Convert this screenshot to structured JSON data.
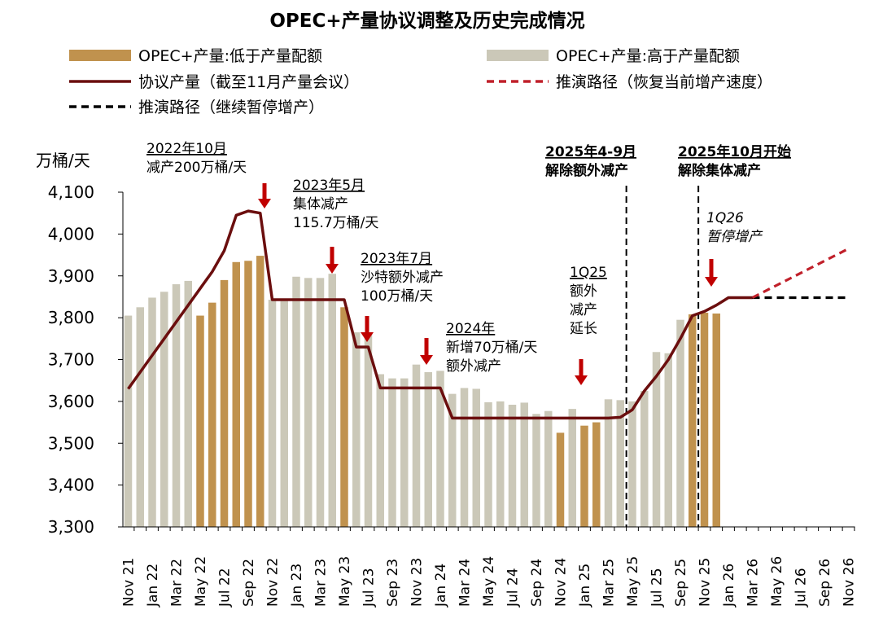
{
  "chart_data": {
    "type": "bar",
    "title": "OPEC+产量协议调整及历史完成情况",
    "ylabel": "万桶/天",
    "ylim": [
      3300,
      4100
    ],
    "yticks": [
      3300,
      3400,
      3500,
      3600,
      3700,
      3800,
      3900,
      4000,
      4100
    ],
    "ytick_labels": [
      "3,300",
      "3,400",
      "3,500",
      "3,600",
      "3,700",
      "3,800",
      "3,900",
      "4,000",
      "4,100"
    ],
    "months": [
      "Nov 21",
      "Dec 21",
      "Jan 22",
      "Feb 22",
      "Mar 22",
      "Apr 22",
      "May 22",
      "Jun 22",
      "Jul 22",
      "Aug 22",
      "Sep 22",
      "Oct 22",
      "Nov 22",
      "Dec 22",
      "Jan 23",
      "Feb 23",
      "Mar 23",
      "Apr 23",
      "May 23",
      "Jun 23",
      "Jul 23",
      "Aug 23",
      "Sep 23",
      "Oct 23",
      "Nov 23",
      "Dec 23",
      "Jan 24",
      "Feb 24",
      "Mar 24",
      "Apr 24",
      "May 24",
      "Jun 24",
      "Jul 24",
      "Aug 24",
      "Sep 24",
      "Oct 24",
      "Nov 24",
      "Dec 24",
      "Jan 25",
      "Feb 25",
      "Mar 25",
      "Apr 25",
      "May 25",
      "Jun 25",
      "Jul 25",
      "Aug 25",
      "Sep 25",
      "Oct 25",
      "Nov 25",
      "Dec 25",
      "Jan 26",
      "Feb 26",
      "Mar 26",
      "Apr 26",
      "May 26",
      "Jun 26",
      "Jul 26",
      "Aug 26",
      "Sep 26",
      "Oct 26",
      "Nov 26"
    ],
    "xtick_labels": [
      "Nov 21",
      "Jan 22",
      "Mar 22",
      "May 22",
      "Jul 22",
      "Sep 22",
      "Nov 22",
      "Jan 23",
      "Mar 23",
      "May 23",
      "Jul 23",
      "Sep 23",
      "Nov 23",
      "Jan 24",
      "Mar 24",
      "May 24",
      "Jul 24",
      "Sep 24",
      "Nov 24",
      "Jan 25",
      "Mar 25",
      "May 25",
      "Jul 25",
      "Sep 25",
      "Nov 25",
      "Jan 26",
      "Mar 26",
      "May 26",
      "Jul 26",
      "Sep 26",
      "Nov 26"
    ],
    "bars": [
      {
        "v": 3805,
        "c": "above"
      },
      {
        "v": 3825,
        "c": "above"
      },
      {
        "v": 3848,
        "c": "above"
      },
      {
        "v": 3862,
        "c": "above"
      },
      {
        "v": 3880,
        "c": "above"
      },
      {
        "v": 3888,
        "c": "above"
      },
      {
        "v": 3805,
        "c": "below"
      },
      {
        "v": 3836,
        "c": "below"
      },
      {
        "v": 3890,
        "c": "below"
      },
      {
        "v": 3933,
        "c": "below"
      },
      {
        "v": 3936,
        "c": "below"
      },
      {
        "v": 3948,
        "c": "below"
      },
      {
        "v": 3843,
        "c": "above"
      },
      {
        "v": 3843,
        "c": "above"
      },
      {
        "v": 3898,
        "c": "above"
      },
      {
        "v": 3895,
        "c": "above"
      },
      {
        "v": 3895,
        "c": "above"
      },
      {
        "v": 3905,
        "c": "above"
      },
      {
        "v": 3825,
        "c": "below"
      },
      {
        "v": 3765,
        "c": "above"
      },
      {
        "v": 3763,
        "c": "above"
      },
      {
        "v": 3665,
        "c": "above"
      },
      {
        "v": 3655,
        "c": "above"
      },
      {
        "v": 3655,
        "c": "above"
      },
      {
        "v": 3688,
        "c": "above"
      },
      {
        "v": 3670,
        "c": "above"
      },
      {
        "v": 3673,
        "c": "above"
      },
      {
        "v": 3618,
        "c": "above"
      },
      {
        "v": 3632,
        "c": "above"
      },
      {
        "v": 3630,
        "c": "above"
      },
      {
        "v": 3598,
        "c": "above"
      },
      {
        "v": 3600,
        "c": "above"
      },
      {
        "v": 3592,
        "c": "above"
      },
      {
        "v": 3597,
        "c": "above"
      },
      {
        "v": 3570,
        "c": "above"
      },
      {
        "v": 3577,
        "c": "above"
      },
      {
        "v": 3525,
        "c": "below"
      },
      {
        "v": 3582,
        "c": "above"
      },
      {
        "v": 3542,
        "c": "below"
      },
      {
        "v": 3550,
        "c": "below"
      },
      {
        "v": 3605,
        "c": "above"
      },
      {
        "v": 3603,
        "c": "above"
      },
      {
        "v": 3600,
        "c": "above"
      },
      {
        "v": 3625,
        "c": "above"
      },
      {
        "v": 3718,
        "c": "above"
      },
      {
        "v": 3715,
        "c": "above"
      },
      {
        "v": 3795,
        "c": "above"
      },
      {
        "v": 3808,
        "c": "below"
      },
      {
        "v": 3812,
        "c": "below"
      },
      {
        "v": 3810,
        "c": "below"
      }
    ],
    "series": [
      {
        "name": "OPEC+产量:低于产量配额",
        "kind": "bar",
        "color": "#C0924E"
      },
      {
        "name": "OPEC+产量:高于产量配额",
        "kind": "bar",
        "color": "#CBC8B8"
      },
      {
        "name": "协议产量（截至11月产量会议）",
        "kind": "line",
        "color": "#6B0E0E",
        "points": [
          [
            0,
            3630
          ],
          [
            1,
            3670
          ],
          [
            2,
            3710
          ],
          [
            3,
            3750
          ],
          [
            4,
            3790
          ],
          [
            5,
            3830
          ],
          [
            6,
            3870
          ],
          [
            7,
            3910
          ],
          [
            8,
            3960
          ],
          [
            9,
            4045
          ],
          [
            10,
            4055
          ],
          [
            11,
            4050
          ],
          [
            12,
            3843
          ],
          [
            13,
            3843
          ],
          [
            14,
            3843
          ],
          [
            15,
            3843
          ],
          [
            16,
            3843
          ],
          [
            17,
            3843
          ],
          [
            18,
            3843
          ],
          [
            19,
            3730
          ],
          [
            20,
            3730
          ],
          [
            21,
            3632
          ],
          [
            22,
            3632
          ],
          [
            23,
            3632
          ],
          [
            24,
            3632
          ],
          [
            25,
            3632
          ],
          [
            26,
            3632
          ],
          [
            27,
            3560
          ],
          [
            28,
            3560
          ],
          [
            29,
            3560
          ],
          [
            30,
            3560
          ],
          [
            31,
            3560
          ],
          [
            32,
            3560
          ],
          [
            33,
            3560
          ],
          [
            34,
            3560
          ],
          [
            35,
            3560
          ],
          [
            36,
            3560
          ],
          [
            37,
            3560
          ],
          [
            38,
            3560
          ],
          [
            39,
            3560
          ],
          [
            40,
            3560
          ],
          [
            41,
            3562
          ],
          [
            42,
            3580
          ],
          [
            43,
            3625
          ],
          [
            44,
            3660
          ],
          [
            45,
            3700
          ],
          [
            46,
            3750
          ],
          [
            47,
            3805
          ],
          [
            48,
            3815
          ],
          [
            49,
            3830
          ],
          [
            50,
            3848
          ],
          [
            51,
            3848
          ],
          [
            52,
            3848
          ]
        ]
      },
      {
        "name": "推演路径（恢复当前增产速度）",
        "kind": "line",
        "color": "#C0202A",
        "points": [
          [
            52,
            3848
          ],
          [
            60,
            3965
          ]
        ]
      },
      {
        "name": "推演路径（继续暂停增产）",
        "kind": "line",
        "color": "#000000",
        "points": [
          [
            52,
            3848
          ],
          [
            60,
            3848
          ]
        ]
      }
    ],
    "vlines": [
      {
        "x": 41.5
      },
      {
        "x": 47.5
      }
    ],
    "annotations": [
      {
        "lines": [
          "2022年10月",
          "减产200万桶/天"
        ],
        "underline_first": true,
        "arrow_index": 11
      },
      {
        "lines": [
          "2023年5月",
          "集体减产",
          "115.7万桶/天"
        ],
        "underline_first": true,
        "arrow_index": 18
      },
      {
        "lines": [
          "2023年7月",
          "沙特额外减产",
          "100万桶/天"
        ],
        "underline_first": true,
        "arrow_index": 20
      },
      {
        "lines": [
          "2024年",
          "新增70万桶/天",
          "额外减产"
        ],
        "underline_first": true,
        "arrow_index": 27
      },
      {
        "lines": [
          "1Q25",
          "额外",
          "减产",
          "延长"
        ],
        "underline_first": true,
        "arrow_index": 38
      },
      {
        "lines": [
          "2025年4-9月",
          "解除额外减产"
        ],
        "underline_first": true,
        "bold": true
      },
      {
        "lines": [
          "2025年10月开始",
          "解除集体减产"
        ],
        "underline_first": true,
        "bold": true
      },
      {
        "lines": [
          "1Q26",
          "暂停增产"
        ],
        "italic": true,
        "arrow_index": 50
      }
    ]
  }
}
